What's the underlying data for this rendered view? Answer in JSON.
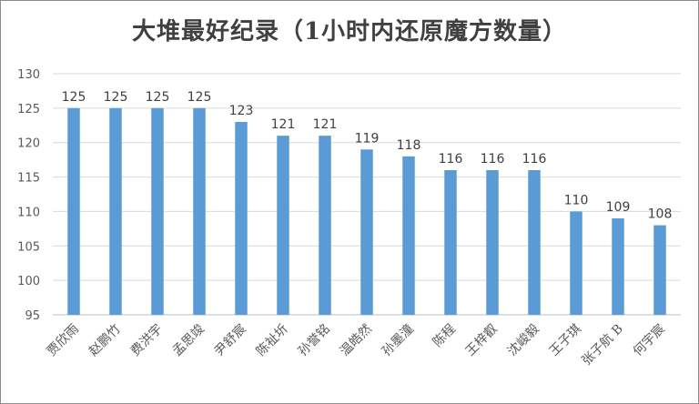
{
  "chart_data": {
    "type": "bar",
    "title": "大堆最好纪录（1小时内还原魔方数量）",
    "xlabel": "",
    "ylabel": "",
    "ylim": [
      95,
      130
    ],
    "yticks": [
      95,
      100,
      105,
      110,
      115,
      120,
      125,
      130
    ],
    "grid": true,
    "legend": "none",
    "bar_color": "#5b9bd5",
    "categories": [
      "贾欣雨",
      "赵鹏竹",
      "费洪宇",
      "孟思竣",
      "尹舒宸",
      "陈祉圻",
      "孙誉铭",
      "温皓然",
      "孙墨潼",
      "陈程",
      "王梓叡",
      "沈峻毅",
      "王子琪",
      "张子航 B",
      "何宇宸"
    ],
    "values": [
      125,
      125,
      125,
      125,
      123,
      121,
      121,
      119,
      118,
      116,
      116,
      116,
      110,
      109,
      108
    ],
    "data_labels": true
  }
}
